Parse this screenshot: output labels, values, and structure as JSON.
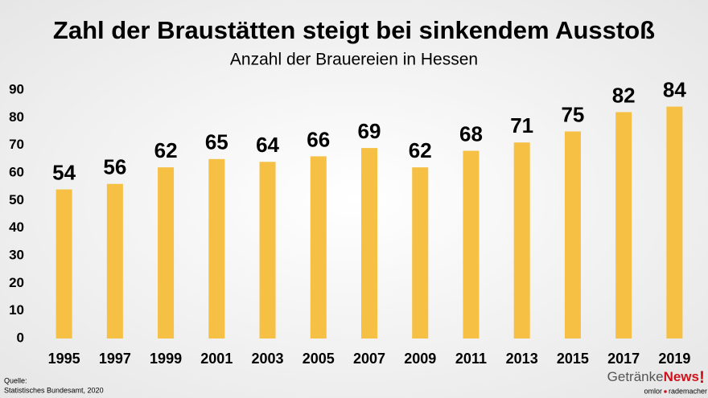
{
  "chart_data": {
    "type": "bar",
    "title": "Zahl der Braustätten steigt bei sinkendem Ausstoß",
    "subtitle": "Anzahl der Brauereien in Hessen",
    "categories": [
      "1995",
      "1997",
      "1999",
      "2001",
      "2003",
      "2005",
      "2007",
      "2009",
      "2011",
      "2013",
      "2015",
      "2017",
      "2019"
    ],
    "values": [
      54,
      56,
      62,
      65,
      64,
      66,
      69,
      62,
      68,
      71,
      75,
      82,
      84
    ],
    "color": "#f5c043",
    "ylim": [
      0,
      90
    ],
    "yticks": [
      0,
      10,
      20,
      30,
      40,
      50,
      60,
      70,
      80,
      90
    ],
    "grid": false,
    "source_label": "Quelle:",
    "source": "Statistisches Bundesamt, 2020",
    "logo": {
      "part1": "Getränke",
      "part2": "News",
      "mark": "!",
      "sub1": "omlor",
      "sub2": "rademacher"
    }
  }
}
